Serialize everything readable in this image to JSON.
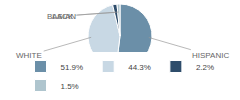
{
  "chart_data": {
    "type": "pie",
    "categories": [
      "HISPANIC",
      "WHITE",
      "BLACK",
      "ASIAN"
    ],
    "values": [
      51.9,
      44.3,
      2.2,
      1.5
    ],
    "value_labels": [
      "51.9%",
      "44.3%",
      "2.2%",
      "1.5%"
    ],
    "colors": [
      "#6b8fa8",
      "#c8d8e4",
      "#2e4d6b",
      "#afc5ce"
    ],
    "legend": "bottom"
  }
}
